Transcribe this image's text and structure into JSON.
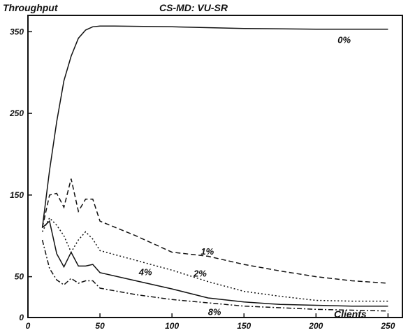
{
  "chart_data": {
    "type": "line",
    "title": "CS-MD: VU-SR",
    "ylabel": "Throughput",
    "xlabel": "Clients",
    "xlim": [
      0,
      260
    ],
    "ylim": [
      0,
      370
    ],
    "x_ticks": [
      0,
      50,
      100,
      150,
      200,
      250
    ],
    "y_ticks": [
      0,
      50,
      150,
      250,
      350
    ],
    "grid": false,
    "series": [
      {
        "name": "0%",
        "style": "solid",
        "x": [
          10,
          15,
          20,
          25,
          30,
          35,
          40,
          45,
          50,
          60,
          100,
          150,
          200,
          250
        ],
        "y": [
          110,
          180,
          240,
          290,
          320,
          342,
          352,
          356,
          357,
          357,
          356,
          354,
          353,
          353
        ]
      },
      {
        "name": "1%",
        "style": "dashed",
        "x": [
          10,
          15,
          20,
          25,
          30,
          35,
          40,
          45,
          50,
          75,
          100,
          125,
          150,
          175,
          200,
          225,
          250
        ],
        "y": [
          110,
          150,
          152,
          135,
          170,
          130,
          145,
          145,
          118,
          100,
          80,
          75,
          65,
          57,
          50,
          45,
          42
        ]
      },
      {
        "name": "2%",
        "style": "dotted",
        "x": [
          10,
          15,
          20,
          25,
          30,
          35,
          40,
          45,
          50,
          75,
          100,
          125,
          150,
          175,
          200,
          225,
          250
        ],
        "y": [
          105,
          122,
          113,
          100,
          80,
          95,
          105,
          96,
          82,
          70,
          58,
          44,
          32,
          26,
          21,
          20,
          20
        ]
      },
      {
        "name": "4%",
        "style": "solid",
        "x": [
          10,
          15,
          20,
          25,
          30,
          35,
          40,
          45,
          50,
          75,
          100,
          125,
          150,
          175,
          200,
          225,
          250
        ],
        "y": [
          110,
          118,
          78,
          62,
          80,
          63,
          63,
          65,
          55,
          45,
          35,
          24,
          19,
          16,
          15,
          14,
          14
        ]
      },
      {
        "name": "8%",
        "style": "dashdot",
        "x": [
          10,
          15,
          20,
          25,
          30,
          35,
          40,
          45,
          50,
          75,
          100,
          125,
          150,
          175,
          200,
          225,
          250
        ],
        "y": [
          95,
          60,
          46,
          40,
          48,
          42,
          45,
          45,
          36,
          28,
          22,
          18,
          14,
          12,
          10,
          9,
          8
        ]
      }
    ],
    "series_label_positions": {
      "0%": [
        215,
        336
      ],
      "1%": [
        120,
        77
      ],
      "2%": [
        115,
        50
      ],
      "4%": [
        77,
        52
      ],
      "8%": [
        125,
        3
      ]
    }
  }
}
